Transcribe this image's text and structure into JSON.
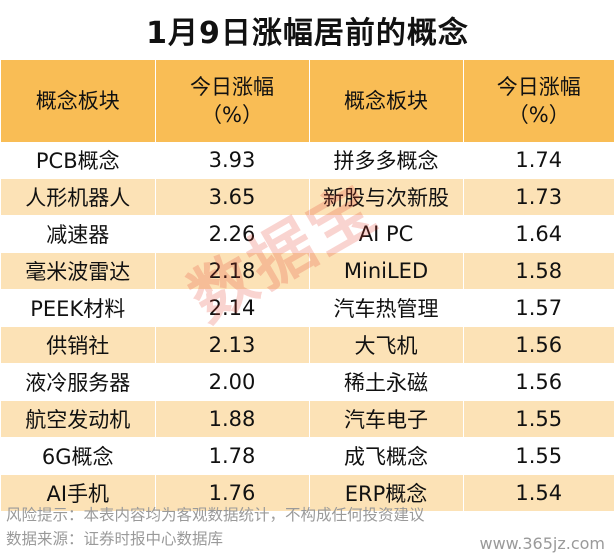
{
  "title": "1月9日涨幅居前的概念",
  "header": {
    "concept_label": "概念板块",
    "change_label_line1": "今日涨幅",
    "change_label_line2": "（%）"
  },
  "rows": [
    {
      "left_name": "PCB概念",
      "left_value": "3.93",
      "right_name": "拼多多概念",
      "right_value": "1.74"
    },
    {
      "left_name": "人形机器人",
      "left_value": "3.65",
      "right_name": "新股与次新股",
      "right_value": "1.73"
    },
    {
      "left_name": "减速器",
      "left_value": "2.26",
      "right_name": "AI PC",
      "right_value": "1.64"
    },
    {
      "left_name": "毫米波雷达",
      "left_value": "2.18",
      "right_name": "MiniLED",
      "right_value": "1.58"
    },
    {
      "left_name": "PEEK材料",
      "left_value": "2.14",
      "right_name": "汽车热管理",
      "right_value": "1.57"
    },
    {
      "left_name": "供销社",
      "left_value": "2.13",
      "right_name": "大飞机",
      "right_value": "1.56"
    },
    {
      "left_name": "液冷服务器",
      "left_value": "2.00",
      "right_name": "稀土永磁",
      "right_value": "1.56"
    },
    {
      "left_name": "航空发动机",
      "left_value": "1.88",
      "right_name": "汽车电子",
      "right_value": "1.55"
    },
    {
      "left_name": "6G概念",
      "left_value": "1.78",
      "right_name": "成飞概念",
      "right_value": "1.55"
    },
    {
      "left_name": "AI手机",
      "left_value": "1.76",
      "right_name": "ERP概念",
      "right_value": "1.54"
    }
  ],
  "footer": {
    "risk_note": "风险提示：本表内容均为客观数据统计，不构成任何投资建议",
    "source_note": "数据来源：证券时报中心数据库"
  },
  "watermark": "数据宝",
  "site": "www.365jz.com",
  "colors": {
    "header_bg": "#f9bd55",
    "stripe_bg": "#fce2b6",
    "watermark": "#e43c28"
  }
}
